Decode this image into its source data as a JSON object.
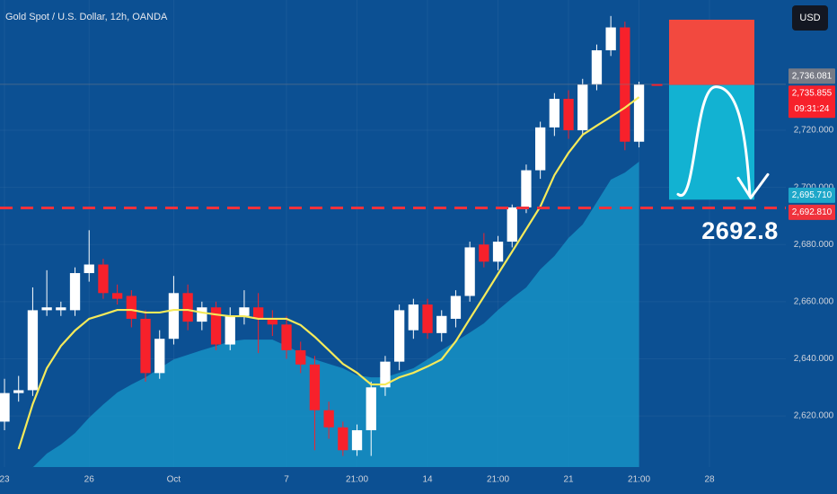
{
  "chart_data": {
    "type": "candlestick",
    "title": "Gold Spot / U.S. Dollar, 12h, OANDA",
    "currency_button": "USD",
    "background": "#0c5093",
    "grid": true,
    "ylim": [
      2602.1,
      2765.6
    ],
    "yticks": [
      {
        "value": 2620,
        "label": "2,620.000"
      },
      {
        "value": 2640,
        "label": "2,640.000"
      },
      {
        "value": 2660,
        "label": "2,660.000"
      },
      {
        "value": 2680,
        "label": "2,680.000"
      },
      {
        "value": 2700,
        "label": "2,700.000"
      },
      {
        "value": 2720,
        "label": "2,720.000"
      }
    ],
    "xlim": [
      -0.32,
      55.41
    ],
    "xticks": [
      {
        "value": 0,
        "label": "23"
      },
      {
        "value": 6,
        "label": "26"
      },
      {
        "value": 12,
        "label": "Oct"
      },
      {
        "value": 20,
        "label": "7"
      },
      {
        "value": 25,
        "label": "21:00"
      },
      {
        "value": 30,
        "label": "14"
      },
      {
        "value": 35,
        "label": "21:00"
      },
      {
        "value": 40,
        "label": "21"
      },
      {
        "value": 45,
        "label": "21:00"
      },
      {
        "value": 50,
        "label": "28"
      }
    ],
    "candles": {
      "up_color": "#ffffff",
      "down_color": "#f7212b",
      "open": [
        2618,
        2628,
        2629,
        2657,
        2657,
        2657,
        2670,
        2673,
        2663,
        2662,
        2654,
        2635,
        2647,
        2663,
        2653,
        2658,
        2645,
        2655,
        2658,
        2654,
        2652,
        2643,
        2638,
        2622,
        2616,
        2608,
        2615,
        2630,
        2639,
        2650,
        2659,
        2649,
        2654,
        2662,
        2680,
        2674,
        2681,
        2693,
        2706,
        2721,
        2731,
        2720,
        2736,
        2748,
        2756,
        2716
      ],
      "high": [
        2633,
        2634,
        2665,
        2671,
        2660,
        2672,
        2685,
        2675,
        2666,
        2664,
        2657,
        2650,
        2669,
        2666,
        2660,
        2660,
        2658,
        2664,
        2663,
        2657,
        2655,
        2646,
        2641,
        2625,
        2618,
        2617,
        2632,
        2641,
        2659,
        2661,
        2661,
        2657,
        2664,
        2681,
        2684,
        2683,
        2694,
        2708,
        2723,
        2733,
        2734,
        2738,
        2750,
        2760,
        2758,
        2737
      ],
      "low": [
        2615,
        2625,
        2627,
        2655,
        2655,
        2655,
        2667,
        2661,
        2659,
        2651,
        2632,
        2633,
        2645,
        2650,
        2650,
        2643,
        2643,
        2652,
        2642,
        2648,
        2640,
        2635,
        2608,
        2612,
        2606,
        2606,
        2606,
        2627,
        2636,
        2647,
        2647,
        2646,
        2651,
        2660,
        2672,
        2671,
        2679,
        2691,
        2703,
        2718,
        2717,
        2718,
        2734,
        2746,
        2713,
        2714
      ],
      "close": [
        2628,
        2629,
        2657,
        2658,
        2658,
        2670,
        2673,
        2663,
        2661,
        2654,
        2635,
        2647,
        2663,
        2653,
        2658,
        2645,
        2655,
        2658,
        2654,
        2652,
        2643,
        2638,
        2622,
        2616,
        2608,
        2615,
        2630,
        2639,
        2657,
        2659,
        2649,
        2655,
        2662,
        2679,
        2674,
        2681,
        2693,
        2706,
        2721,
        2731,
        2720,
        2736,
        2748,
        2756,
        2716,
        2736
      ]
    },
    "area": {
      "color": "#1690c4",
      "values": [
        null,
        null,
        2602,
        2606.8,
        2610,
        2614,
        2619.4,
        2624,
        2628.2,
        2631,
        2633.5,
        2636.7,
        2639.8,
        2641.4,
        2643,
        2644.5,
        2646.1,
        2646.7,
        2646.7,
        2646.7,
        2644.5,
        2642,
        2639.8,
        2638.2,
        2636.7,
        2634.2,
        2633.5,
        2633.5,
        2635.1,
        2636.7,
        2639.8,
        2643,
        2646.1,
        2649.2,
        2652.4,
        2657.1,
        2661.2,
        2665,
        2671.3,
        2676,
        2682.3,
        2687,
        2694.8,
        2702.7,
        2705.2,
        2709
      ]
    },
    "ma": {
      "color": "#f5ea5a",
      "values": [
        null,
        2608.4,
        2624.1,
        2636.7,
        2644.5,
        2649.9,
        2654,
        2655.5,
        2657.1,
        2657.1,
        2656.2,
        2656.2,
        2657.1,
        2657.1,
        2656.2,
        2655.5,
        2654.9,
        2654.9,
        2654,
        2654,
        2654,
        2651.8,
        2647.7,
        2643,
        2638.2,
        2635.1,
        2631,
        2631,
        2633.5,
        2635.1,
        2637.3,
        2639.8,
        2646.1,
        2654,
        2661.8,
        2669.7,
        2677.5,
        2685.4,
        2693.3,
        2704.3,
        2712.1,
        2718.4,
        2721.6,
        2724.7,
        2727.9,
        2731.6
      ]
    },
    "price_lines": [
      {
        "value": 2736.081,
        "label": "2,736.081",
        "color": "#787b86",
        "style": "solid"
      },
      {
        "value": 2735.855,
        "label": "2,735.855",
        "color": "#f7212b",
        "style": "marker",
        "countdown": "09:31:24"
      },
      {
        "value": 2695.71,
        "label": "2,695.710",
        "color": "#1ea7c9",
        "style": "none"
      },
      {
        "value": 2692.81,
        "label": "2,692.810",
        "color": "#f0323c",
        "style": "dashed"
      }
    ],
    "position": {
      "stop": 2758.7,
      "entry": 2735.855,
      "target": 2695.71,
      "loss_color": "#f2493f",
      "profit_color": "#12b2d2"
    },
    "annotation": "2692.8"
  }
}
